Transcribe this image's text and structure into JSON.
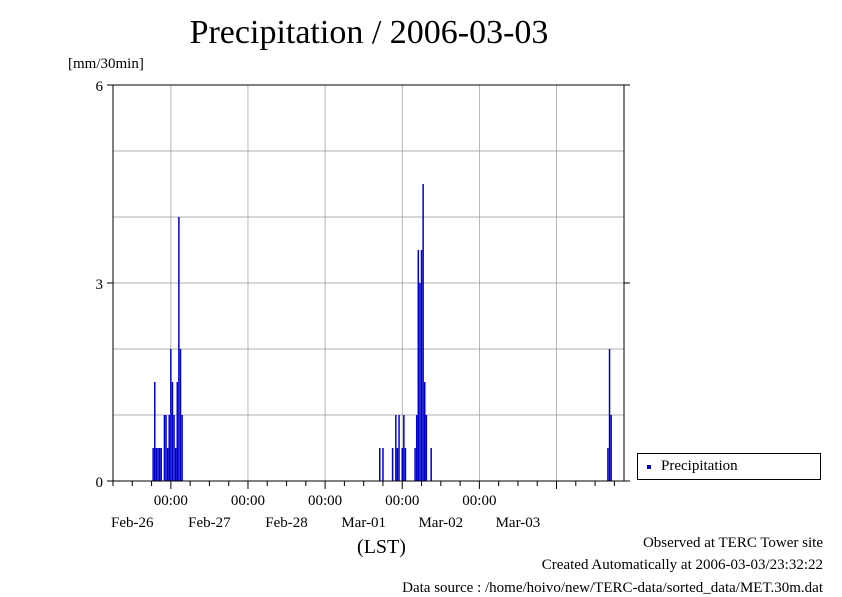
{
  "page": {
    "title": "Precipitation / 2006-03-03",
    "unit_label": "[mm/30min]",
    "legend": "Precipitation",
    "footer_site": "Observed at TERC Tower site",
    "footer_created": "Created Automatically at 2006-03-03/23:32:22",
    "footer_source": "Data source : /home/hoivo/new/TERC-data/sorted_data/MET.30m.dat"
  },
  "chart_data": {
    "type": "bar",
    "title": "Precipitation / 2006-03-03",
    "ylabel": "[mm/30min]",
    "xlabel": "(LST)",
    "ylim": [
      0,
      6
    ],
    "yticks": [
      0,
      3,
      6
    ],
    "xlim": [
      "2006-02-25T06:00",
      "2006-03-03T21:00"
    ],
    "time_ticks": [
      "00:00",
      "00:00",
      "00:00",
      "00:00",
      "00:00"
    ],
    "date_ticks": [
      "Feb-26",
      "Feb-27",
      "Feb-28",
      "Mar-01",
      "Mar-02",
      "Mar-03"
    ],
    "grid": true,
    "legend_position": "right",
    "colors": {
      "series": "#0000cc"
    },
    "series": [
      {
        "name": "Precipitation",
        "points": [
          [
            "2006-02-25T18:30",
            0.5
          ],
          [
            "2006-02-25T19:00",
            1.5
          ],
          [
            "2006-02-25T19:30",
            0.5
          ],
          [
            "2006-02-25T20:00",
            0.5
          ],
          [
            "2006-02-25T20:30",
            0.5
          ],
          [
            "2006-02-25T21:00",
            0.5
          ],
          [
            "2006-02-25T22:00",
            1.0
          ],
          [
            "2006-02-25T22:30",
            1.0
          ],
          [
            "2006-02-25T23:00",
            0.5
          ],
          [
            "2006-02-25T23:30",
            1.0
          ],
          [
            "2006-02-26T00:00",
            2.0
          ],
          [
            "2006-02-26T00:30",
            1.5
          ],
          [
            "2006-02-26T01:00",
            1.0
          ],
          [
            "2006-02-26T01:30",
            0.5
          ],
          [
            "2006-02-26T02:00",
            1.5
          ],
          [
            "2006-02-26T02:30",
            4.0
          ],
          [
            "2006-02-26T03:00",
            2.0
          ],
          [
            "2006-02-26T03:30",
            1.0
          ],
          [
            "2006-02-28T17:00",
            0.5
          ],
          [
            "2006-02-28T18:00",
            0.5
          ],
          [
            "2006-02-28T21:00",
            0.5
          ],
          [
            "2006-02-28T22:00",
            1.0
          ],
          [
            "2006-02-28T22:30",
            0.5
          ],
          [
            "2006-02-28T23:00",
            1.0
          ],
          [
            "2006-03-01T00:00",
            0.5
          ],
          [
            "2006-03-01T00:30",
            1.0
          ],
          [
            "2006-03-01T01:00",
            0.5
          ],
          [
            "2006-03-01T04:00",
            0.5
          ],
          [
            "2006-03-01T04:30",
            1.0
          ],
          [
            "2006-03-01T05:00",
            3.5
          ],
          [
            "2006-03-01T05:30",
            3.0
          ],
          [
            "2006-03-01T06:00",
            3.5
          ],
          [
            "2006-03-01T06:30",
            4.5
          ],
          [
            "2006-03-01T07:00",
            1.5
          ],
          [
            "2006-03-01T07:30",
            1.0
          ],
          [
            "2006-03-01T09:00",
            0.5
          ],
          [
            "2006-03-03T16:00",
            0.5
          ],
          [
            "2006-03-03T16:30",
            2.0
          ],
          [
            "2006-03-03T17:00",
            1.0
          ]
        ]
      }
    ]
  }
}
